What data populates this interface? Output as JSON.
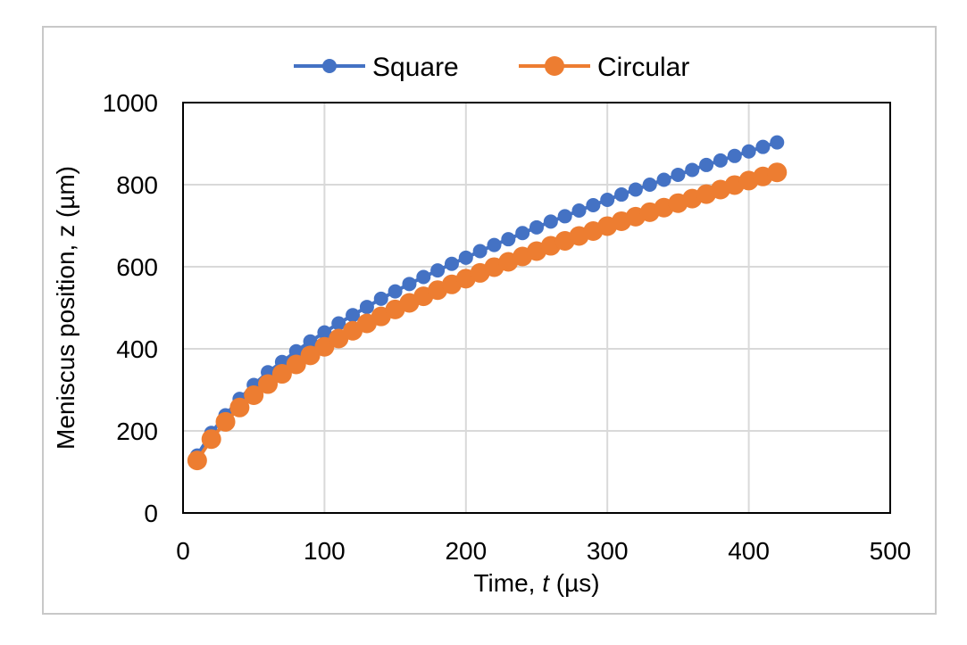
{
  "chart_data": {
    "type": "scatter",
    "xlabel_prefix": "Time, ",
    "xlabel_var": "t",
    "xlabel_suffix": " (µs)",
    "ylabel": "Meniscus position, z (µm)",
    "xlim": [
      0,
      500
    ],
    "ylim": [
      0,
      1000
    ],
    "xticks": [
      "0",
      "100",
      "200",
      "300",
      "400",
      "500"
    ],
    "yticks": [
      "0",
      "200",
      "400",
      "600",
      "800",
      "1000"
    ],
    "grid": true,
    "legend_position": "top",
    "series": [
      {
        "name": "Square",
        "color": "#4472C4",
        "marker": "circle-small",
        "x": [
          10,
          20,
          30,
          40,
          50,
          60,
          70,
          80,
          90,
          100,
          110,
          120,
          130,
          140,
          150,
          160,
          170,
          180,
          190,
          200,
          210,
          220,
          230,
          240,
          250,
          260,
          270,
          280,
          290,
          300,
          310,
          320,
          330,
          340,
          350,
          360,
          370,
          380,
          390,
          400,
          410,
          420
        ],
        "y": [
          140,
          195,
          238,
          278,
          312,
          343,
          368,
          394,
          418,
          440,
          462,
          482,
          502,
          522,
          540,
          558,
          575,
          591,
          607,
          622,
          638,
          653,
          667,
          682,
          696,
          710,
          723,
          737,
          750,
          763,
          776,
          788,
          800,
          812,
          824,
          836,
          848,
          859,
          870,
          881,
          892,
          903
        ]
      },
      {
        "name": "Circular",
        "color": "#ED7D31",
        "marker": "circle-large",
        "x": [
          10,
          20,
          30,
          40,
          50,
          60,
          70,
          80,
          90,
          100,
          110,
          120,
          130,
          140,
          150,
          160,
          170,
          180,
          190,
          200,
          210,
          220,
          230,
          240,
          250,
          260,
          270,
          280,
          290,
          300,
          310,
          320,
          330,
          340,
          350,
          360,
          370,
          380,
          390,
          400,
          410,
          420
        ],
        "y": [
          128,
          180,
          222,
          257,
          287,
          314,
          339,
          362,
          384,
          405,
          425,
          444,
          462,
          479,
          496,
          512,
          528,
          543,
          557,
          571,
          585,
          599,
          612,
          625,
          638,
          651,
          663,
          675,
          687,
          699,
          711,
          722,
          733,
          744,
          755,
          766,
          777,
          788,
          799,
          810,
          820,
          830
        ]
      }
    ]
  }
}
